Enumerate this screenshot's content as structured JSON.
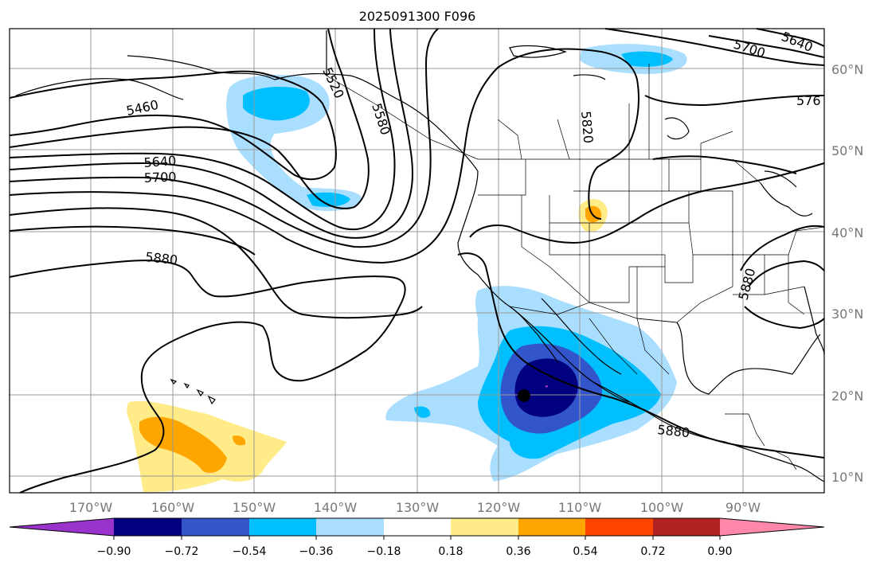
{
  "title": "2025091300 F096",
  "latitude_labels": [
    "60°N",
    "50°N",
    "40°N",
    "30°N",
    "20°N",
    "10°N"
  ],
  "longitude_labels": [
    "170°W",
    "160°W",
    "150°W",
    "140°W",
    "130°W",
    "120°W",
    "110°W",
    "100°W",
    "90°W"
  ],
  "contour_labels": [
    "5460",
    "5520",
    "5580",
    "5640",
    "5700",
    "5820",
    "5880",
    "5880",
    "5880",
    "5640",
    "5700",
    "576"
  ],
  "colorbar": {
    "tick_labels": [
      "−0.90",
      "−0.72",
      "−0.54",
      "−0.36",
      "−0.18",
      "0.18",
      "0.36",
      "0.54",
      "0.72",
      "0.90"
    ],
    "colors": [
      "#9933cc",
      "#000080",
      "#3355cc",
      "#00bfff",
      "#aadeff",
      "#ffffff",
      "#ffeb88",
      "#ffa500",
      "#ff4500",
      "#b22222",
      "#ff88aa"
    ]
  },
  "colors": {
    "contour": "#000000",
    "grid": "#999999",
    "label_gray": "#777777"
  }
}
